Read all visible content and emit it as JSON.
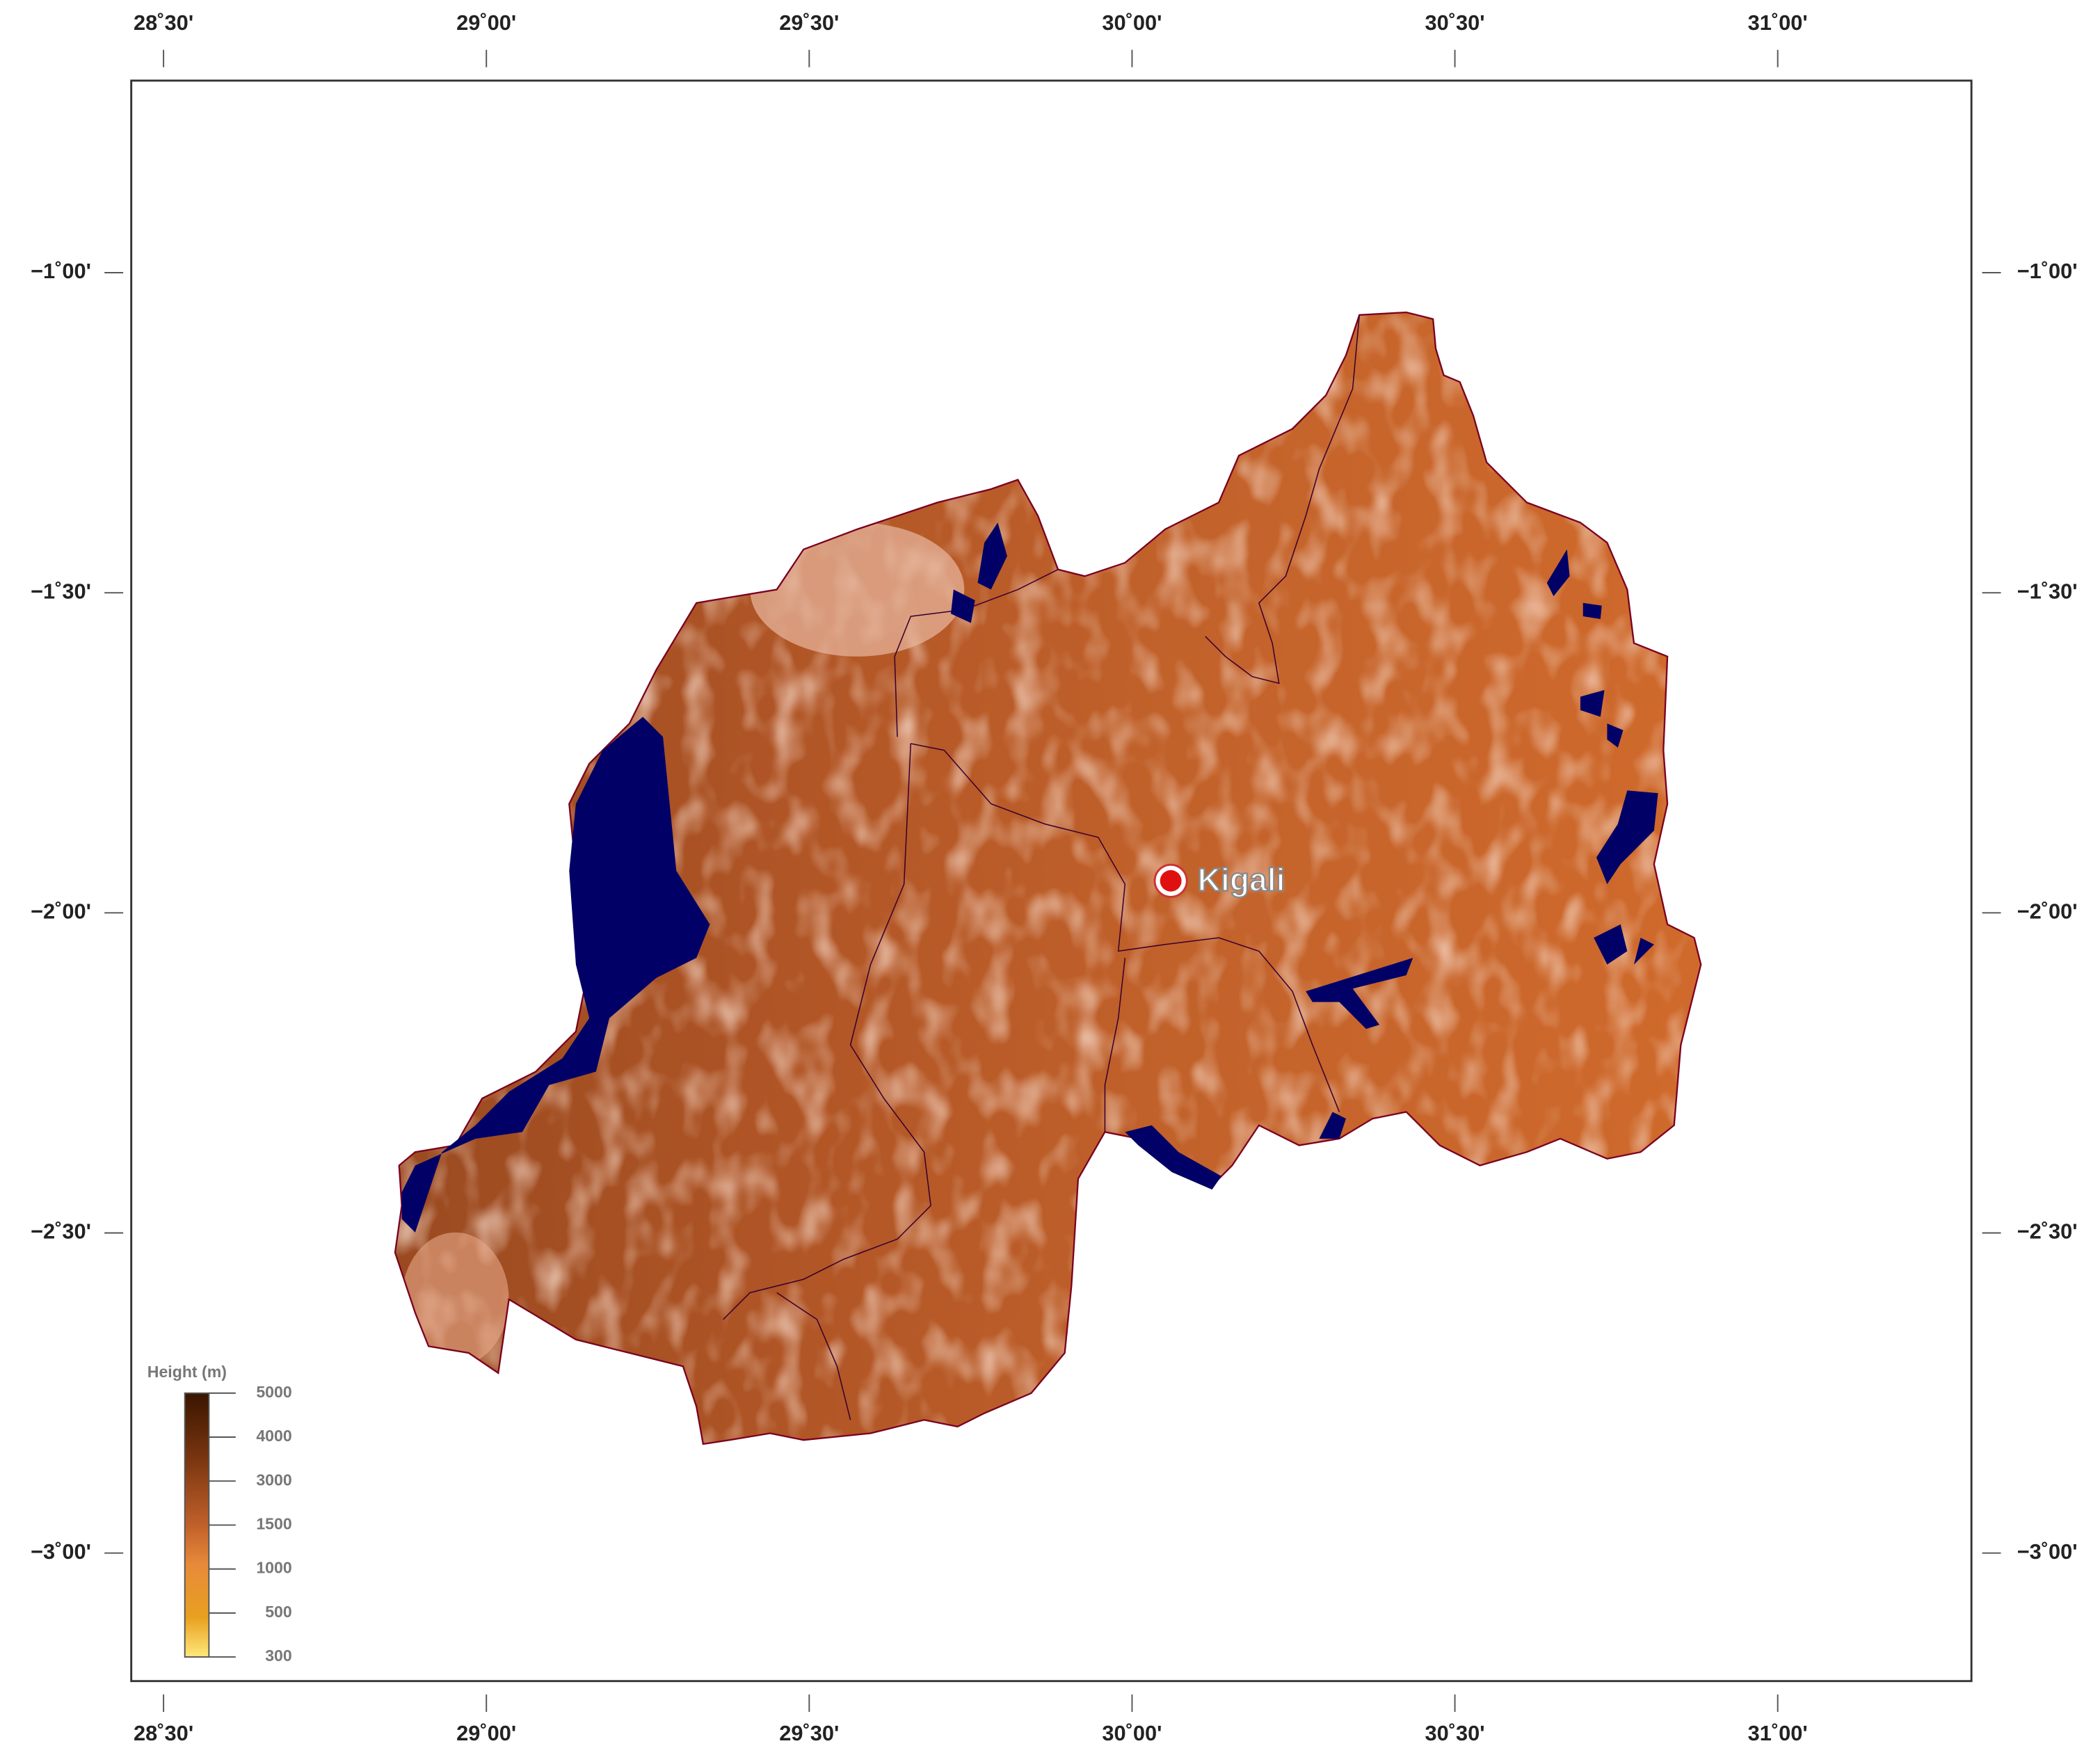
{
  "map": {
    "xlim": [
      28.45,
      31.3
    ],
    "ylim": [
      -3.2,
      -0.7
    ],
    "xticks": [
      {
        "value": 28.5,
        "label": "28˚30'"
      },
      {
        "value": 29.0,
        "label": "29˚00'"
      },
      {
        "value": 29.5,
        "label": "29˚30'"
      },
      {
        "value": 30.0,
        "label": "30˚00'"
      },
      {
        "value": 30.5,
        "label": "30˚30'"
      },
      {
        "value": 31.0,
        "label": "31˚00'"
      }
    ],
    "yticks": [
      {
        "value": -1.0,
        "label": "−1˚00'"
      },
      {
        "value": -1.5,
        "label": "−1˚30'"
      },
      {
        "value": -2.0,
        "label": "−2˚00'"
      },
      {
        "value": -2.5,
        "label": "−2˚30'"
      },
      {
        "value": -3.0,
        "label": "−3˚00'"
      }
    ],
    "city": {
      "name": "Kigali",
      "lon": 30.06,
      "lat": -1.95
    },
    "legend": {
      "title": "Height (m)",
      "ticks": [
        "5000",
        "4000",
        "3000",
        "1500",
        "1000",
        "500",
        "300"
      ]
    }
  }
}
